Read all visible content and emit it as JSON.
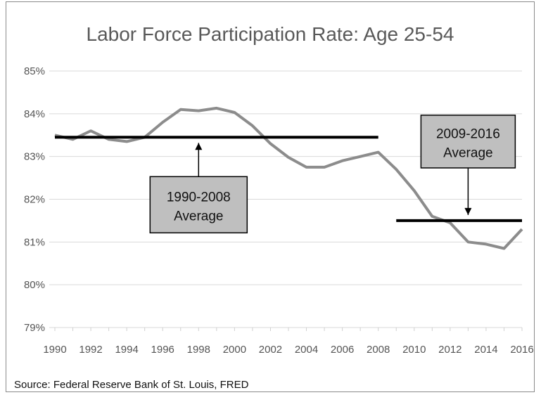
{
  "chart_data": {
    "type": "line",
    "title": "Labor Force Participation Rate: Age 25-54",
    "source": "Source: Federal Reserve  Bank of St. Louis, FRED",
    "xlabel": "",
    "ylabel": "",
    "x": [
      1990,
      1991,
      1992,
      1993,
      1994,
      1995,
      1996,
      1997,
      1998,
      1999,
      2000,
      2001,
      2002,
      2003,
      2004,
      2005,
      2006,
      2007,
      2008,
      2009,
      2010,
      2011,
      2012,
      2013,
      2014,
      2015,
      2016
    ],
    "series": [
      {
        "name": "",
        "values": [
          83.5,
          83.4,
          83.6,
          83.4,
          83.35,
          83.45,
          83.8,
          84.1,
          84.07,
          84.13,
          84.03,
          83.72,
          83.3,
          82.98,
          82.75,
          82.75,
          82.9,
          83.0,
          83.1,
          82.7,
          82.2,
          81.6,
          81.45,
          81.0,
          80.95,
          80.85,
          81.3
        ]
      }
    ],
    "averages": [
      {
        "label_line1": "1990-2008",
        "label_line2": "Average",
        "x_start": 1990,
        "x_end": 2008,
        "value": 83.45
      },
      {
        "label_line1": "2009-2016",
        "label_line2": "Average",
        "x_start": 2009,
        "x_end": 2016,
        "value": 81.5
      }
    ],
    "ylim": [
      79,
      85
    ],
    "y_ticks": [
      79,
      80,
      81,
      82,
      83,
      84,
      85
    ],
    "y_tick_labels": [
      "79%",
      "80%",
      "81%",
      "82%",
      "83%",
      "84%",
      "85%"
    ],
    "x_tick_labels": [
      "1990",
      "1992",
      "1994",
      "1996",
      "1998",
      "2000",
      "2002",
      "2004",
      "2006",
      "2008",
      "2010",
      "2012",
      "2014",
      "2016"
    ],
    "grid": true,
    "legend": "none",
    "colors": {
      "series": "#8c8c8c",
      "average": "#000000",
      "grid": "#d9d9d9",
      "box": "#bfbfbf"
    }
  }
}
